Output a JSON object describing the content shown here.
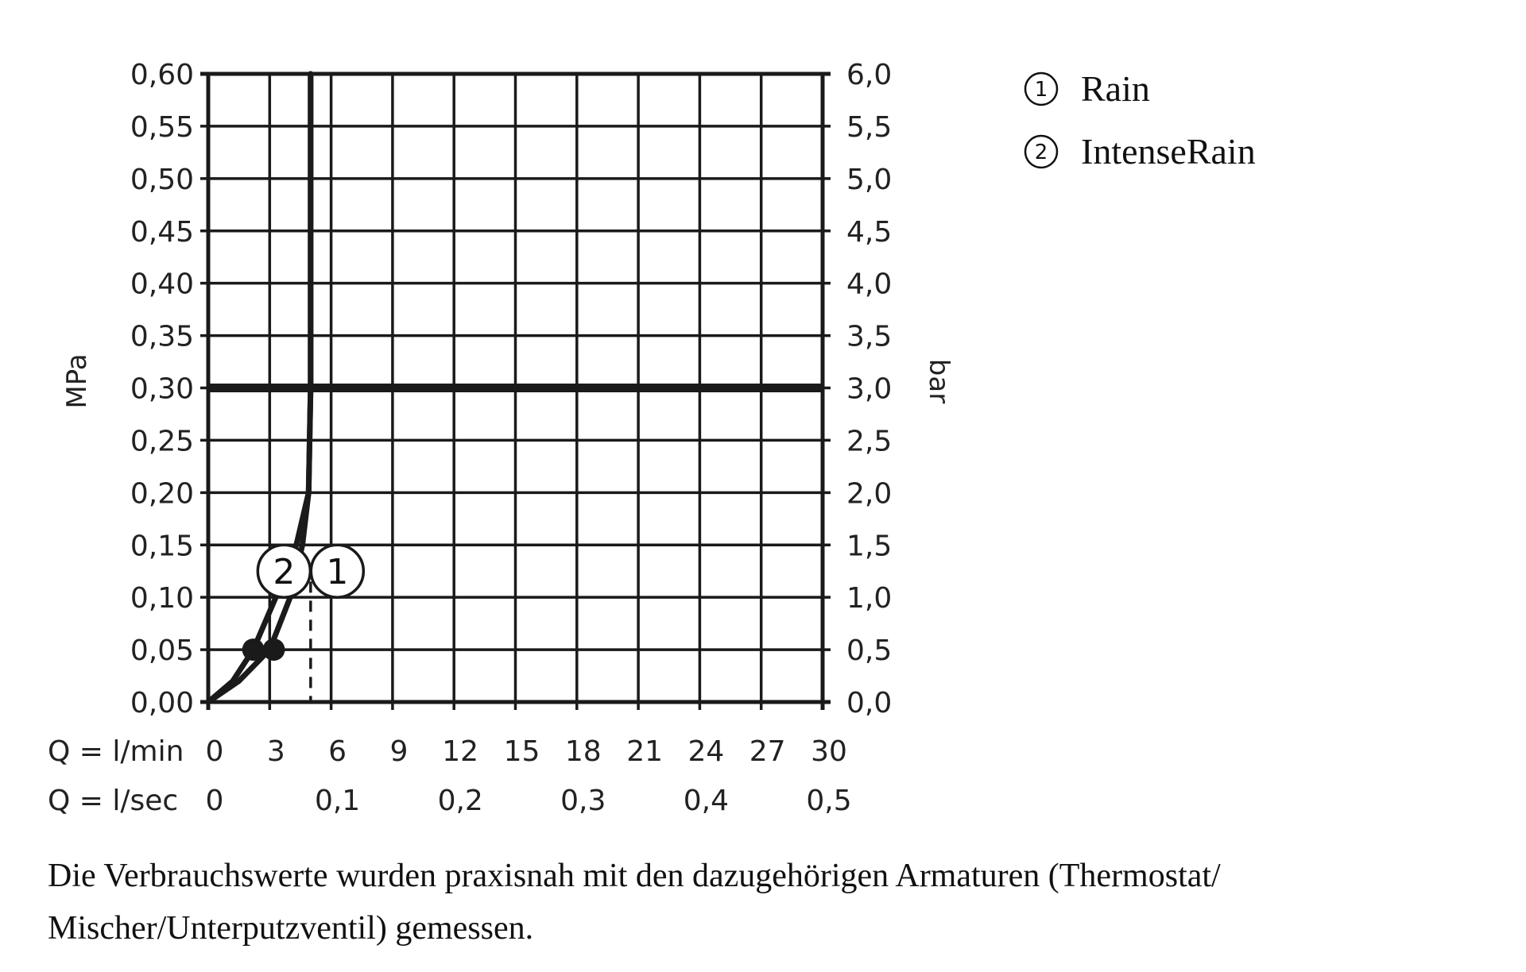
{
  "chart_data": {
    "type": "line",
    "xlabel_rows": [
      "Q = l/min",
      "Q = l/sec"
    ],
    "x_ticks_lmin": [
      "0",
      "3",
      "6",
      "9",
      "12",
      "15",
      "18",
      "21",
      "24",
      "27",
      "30"
    ],
    "x_ticks_lsec": [
      {
        "value": 0,
        "label": "0"
      },
      {
        "value": 6,
        "label": "0,1"
      },
      {
        "value": 12,
        "label": "0,2"
      },
      {
        "value": 18,
        "label": "0,3"
      },
      {
        "value": 24,
        "label": "0,4"
      },
      {
        "value": 30,
        "label": "0,5"
      }
    ],
    "xlim": [
      0,
      30
    ],
    "ylabel_left": "MPa",
    "ylabel_right": "bar",
    "ylim": [
      0,
      0.6
    ],
    "y_ticks_left": [
      "0,00",
      "0,05",
      "0,10",
      "0,15",
      "0,20",
      "0,25",
      "0,30",
      "0,35",
      "0,40",
      "0,45",
      "0,50",
      "0,55",
      "0,60"
    ],
    "y_ticks_right": [
      "0,0",
      "0,5",
      "1,0",
      "1,5",
      "2,0",
      "2,5",
      "3,0",
      "3,5",
      "4,0",
      "4,5",
      "5,0",
      "5,5",
      "6,0"
    ],
    "grid": true,
    "reference_line_mpa": 0.3,
    "series": [
      {
        "name": "1",
        "points": [
          [
            0,
            0
          ],
          [
            1.5,
            0.02
          ],
          [
            3,
            0.05
          ],
          [
            4.0,
            0.1
          ],
          [
            4.6,
            0.15
          ],
          [
            4.9,
            0.2
          ],
          [
            5.0,
            0.3
          ],
          [
            5.0,
            0.6
          ]
        ],
        "marker": [
          3.2,
          0.05
        ],
        "dashed_drop_x": 5.0
      },
      {
        "name": "2",
        "points": [
          [
            0,
            0
          ],
          [
            1.2,
            0.02
          ],
          [
            2.2,
            0.05
          ],
          [
            3.3,
            0.1
          ],
          [
            4.3,
            0.15
          ],
          [
            4.9,
            0.2
          ],
          [
            5.0,
            0.3
          ],
          [
            5.0,
            0.6
          ]
        ],
        "marker": [
          2.2,
          0.05
        ]
      }
    ],
    "legend": [
      {
        "num": "1",
        "label": "Rain"
      },
      {
        "num": "2",
        "label": "IntenseRain"
      }
    ],
    "legend_position": "top-right"
  },
  "footnote": "Die Verbrauchswerte wurden praxisnah mit den dazugehörigen Armaturen (Thermostat/ Mischer/Unterputzventil) gemessen.",
  "colors": {
    "ink": "#1a1a1a",
    "background": "#ffffff"
  }
}
